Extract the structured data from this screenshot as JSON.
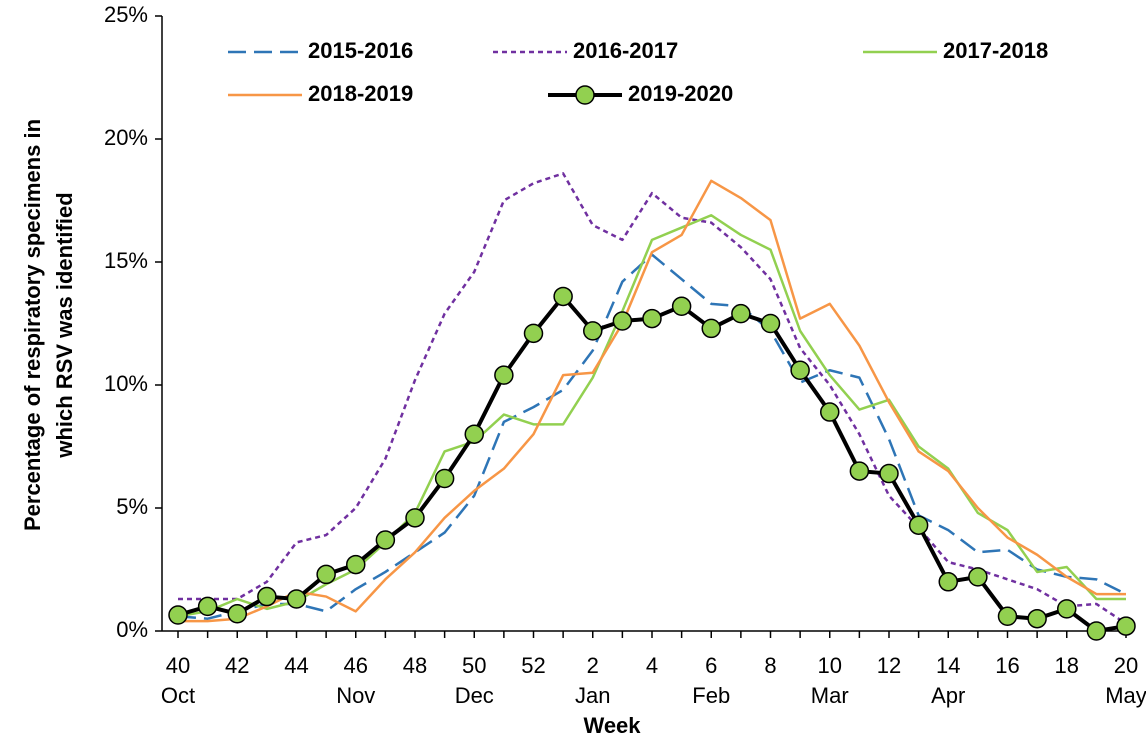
{
  "chart_data": {
    "type": "line",
    "xlabel": "Week",
    "ylabel": [
      "Percentage of respiratory specimens in",
      "which RSV was identified"
    ],
    "categories": [
      "40",
      null,
      "42",
      null,
      "44",
      null,
      "46",
      null,
      "48",
      null,
      "50",
      null,
      "52",
      null,
      "2",
      null,
      "4",
      null,
      "6",
      null,
      "8",
      null,
      "10",
      null,
      "12",
      null,
      "14",
      null,
      "16",
      null,
      "18",
      null,
      "20"
    ],
    "months": [
      "Oct",
      null,
      null,
      null,
      null,
      null,
      "Nov",
      null,
      null,
      null,
      "Dec",
      null,
      null,
      null,
      "Jan",
      null,
      null,
      null,
      "Feb",
      null,
      null,
      null,
      "Mar",
      null,
      null,
      null,
      "Apr",
      null,
      null,
      null,
      null,
      null,
      "May"
    ],
    "ylim": [
      0,
      25
    ],
    "yticks": [
      {
        "value": 0,
        "label": "0%"
      },
      {
        "value": 5,
        "label": "5%"
      },
      {
        "value": 10,
        "label": "10%"
      },
      {
        "value": 15,
        "label": "15%"
      },
      {
        "value": 20,
        "label": "20%"
      },
      {
        "value": 25,
        "label": "25%"
      }
    ],
    "grid": false,
    "series": [
      {
        "name": "2015-2016",
        "color": "#2e75b6",
        "dash": "18,8",
        "values": [
          0.6,
          0.5,
          0.8,
          1.1,
          1.1,
          0.8,
          1.7,
          2.4,
          3.2,
          4.0,
          5.5,
          8.5,
          9.1,
          9.8,
          11.4,
          14.2,
          15.3,
          14.3,
          13.3,
          13.2,
          12.2,
          10.1,
          10.6,
          10.3,
          7.8,
          4.7,
          4.1,
          3.2,
          3.3,
          2.5,
          2.2,
          2.1,
          1.5
        ]
      },
      {
        "name": "2016-2017",
        "color": "#7030a0",
        "dash": "5,4",
        "values": [
          1.3,
          1.3,
          1.3,
          2.0,
          3.6,
          3.9,
          5.0,
          7.0,
          10.2,
          12.9,
          14.6,
          17.5,
          18.2,
          18.6,
          16.5,
          15.9,
          17.8,
          16.8,
          16.6,
          15.6,
          14.3,
          11.5,
          10.0,
          8.0,
          5.5,
          4.2,
          2.8,
          2.5,
          2.1,
          1.7,
          1.0,
          1.1,
          0.3
        ]
      },
      {
        "name": "2017-2018",
        "color": "#92d050",
        "values": [
          0.6,
          0.8,
          1.3,
          0.9,
          1.2,
          1.9,
          2.5,
          3.6,
          4.8,
          7.3,
          7.7,
          8.8,
          8.4,
          8.4,
          10.3,
          13.0,
          15.9,
          16.4,
          16.9,
          16.1,
          15.5,
          12.2,
          10.4,
          9.0,
          9.4,
          7.5,
          6.6,
          4.8,
          4.1,
          2.4,
          2.6,
          1.3,
          1.3
        ]
      },
      {
        "name": "2018-2019",
        "color": "#f79646",
        "values": [
          0.4,
          0.4,
          0.5,
          1.0,
          1.6,
          1.4,
          0.8,
          2.1,
          3.2,
          4.6,
          5.7,
          6.6,
          8.0,
          10.4,
          10.5,
          12.5,
          15.4,
          16.1,
          18.3,
          17.6,
          16.7,
          12.7,
          13.3,
          11.6,
          9.3,
          7.3,
          6.5,
          5.0,
          3.8,
          3.1,
          2.2,
          1.5,
          1.5
        ]
      },
      {
        "name": "2019-2020",
        "color": "#000000",
        "marker_color": "#92d050",
        "values": [
          0.65,
          1.0,
          0.7,
          1.4,
          1.3,
          2.3,
          2.7,
          3.7,
          4.6,
          6.2,
          8.0,
          10.4,
          12.1,
          13.6,
          12.2,
          12.6,
          12.7,
          13.2,
          12.3,
          12.9,
          12.5,
          10.6,
          8.9,
          6.5,
          6.4,
          4.3,
          2.0,
          2.2,
          0.6,
          0.5,
          0.9,
          0.0,
          0.2
        ]
      }
    ]
  }
}
